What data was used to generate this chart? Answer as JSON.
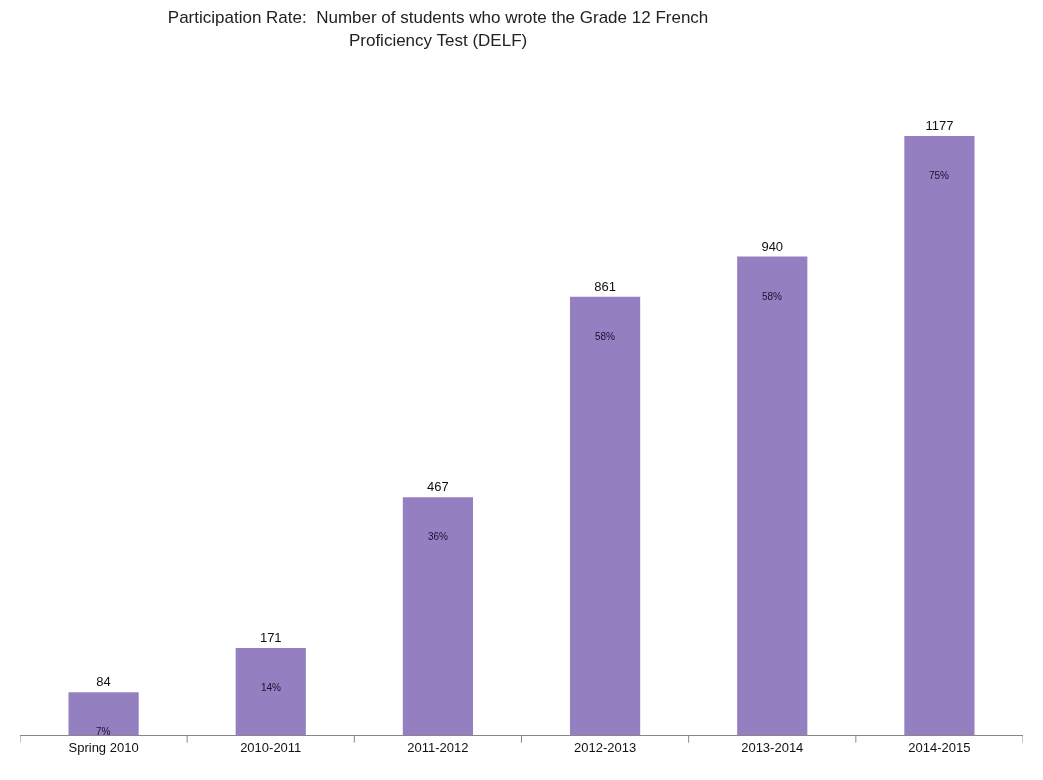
{
  "chart_data": {
    "type": "bar",
    "title": "Participation Rate:  Number of students who wrote the Grade 12 French\nProficiency Test (DELF)",
    "categories": [
      "Spring 2010",
      "2010-2011",
      "2011-2012",
      "2012-2013",
      "2013-2014",
      "2014-2015"
    ],
    "values": [
      84,
      171,
      467,
      861,
      940,
      1177
    ],
    "color": "#9480c0",
    "data_labels": true,
    "annotations": [
      "7%",
      "14%",
      "36%",
      "58%",
      "58%",
      "75%"
    ]
  }
}
